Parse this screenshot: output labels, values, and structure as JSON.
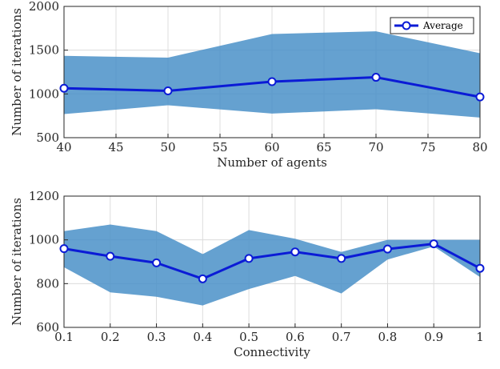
{
  "chart_data": [
    {
      "type": "line",
      "xlabel": "Number of agents",
      "ylabel": "Number of iterations",
      "xlim": [
        40,
        80
      ],
      "ylim": [
        500,
        2000
      ],
      "xticks": [
        40,
        45,
        50,
        55,
        60,
        65,
        70,
        75,
        80
      ],
      "yticks": [
        500,
        1000,
        1500,
        2000
      ],
      "grid": true,
      "x": [
        40,
        50,
        60,
        70,
        80
      ],
      "series": [
        {
          "name": "Average",
          "values": [
            1065,
            1035,
            1140,
            1190,
            965
          ]
        }
      ],
      "band": {
        "upper": [
          1435,
          1415,
          1685,
          1715,
          1465
        ],
        "lower": [
          770,
          870,
          775,
          825,
          730
        ]
      },
      "legend": {
        "position": "top-right"
      },
      "colors": {
        "line": "#0b1bd6",
        "band": "#4a90c8"
      }
    },
    {
      "type": "line",
      "xlabel": "Connectivity",
      "ylabel": "Number of iterations",
      "xlim": [
        0.1,
        1
      ],
      "ylim": [
        600,
        1200
      ],
      "xticks": [
        0.1,
        0.2,
        0.3,
        0.4,
        0.5,
        0.6,
        0.7,
        0.8,
        0.9,
        1
      ],
      "xtick_labels": [
        "0.1",
        "0.2",
        "0.3",
        "0.4",
        "0.5",
        "0.6",
        "0.7",
        "0.8",
        "0.9",
        "1"
      ],
      "yticks": [
        600,
        800,
        1000,
        1200
      ],
      "grid": true,
      "x": [
        0.1,
        0.2,
        0.3,
        0.4,
        0.5,
        0.6,
        0.7,
        0.8,
        0.9,
        1
      ],
      "series": [
        {
          "name": "",
          "values": [
            960,
            925,
            895,
            822,
            915,
            945,
            915,
            958,
            982,
            870
          ]
        }
      ],
      "band": {
        "upper": [
          1040,
          1070,
          1040,
          935,
          1045,
          1005,
          945,
          1000,
          1000,
          1000
        ],
        "lower": [
          875,
          760,
          740,
          700,
          775,
          835,
          755,
          910,
          970,
          830
        ]
      },
      "colors": {
        "line": "#0b1bd6",
        "band": "#4a90c8"
      }
    }
  ]
}
